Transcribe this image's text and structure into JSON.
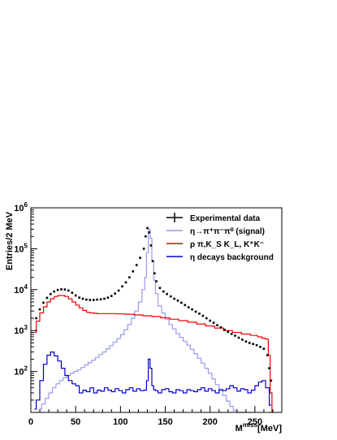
{
  "chart_data": {
    "type": "line",
    "title": "",
    "xlabel": "M^{miss} [MeV]",
    "xlabel_main": "M",
    "xlabel_sup": "miss",
    "xlabel_unit": "[MeV]",
    "ylabel": "Entries/2 MeV",
    "xlim": [
      0,
      280
    ],
    "ylim": [
      10,
      1000000
    ],
    "yscale": "log",
    "grid": false,
    "legend_position": "top-right",
    "x_ticks": [
      0,
      50,
      100,
      150,
      200,
      250
    ],
    "y_ticks": [
      {
        "base": "10",
        "exp": "2",
        "value": 100
      },
      {
        "base": "10",
        "exp": "3",
        "value": 1000
      },
      {
        "base": "10",
        "exp": "4",
        "value": 10000
      },
      {
        "base": "10",
        "exp": "5",
        "value": 100000
      },
      {
        "base": "10",
        "exp": "6",
        "value": 1000000
      }
    ],
    "series": [
      {
        "name": "Experimental data",
        "color": "#000000",
        "style": "points",
        "x": [
          6,
          10,
          14,
          18,
          22,
          26,
          30,
          34,
          38,
          42,
          46,
          50,
          54,
          58,
          62,
          66,
          70,
          74,
          78,
          82,
          86,
          90,
          94,
          98,
          102,
          106,
          110,
          114,
          118,
          122,
          126,
          128,
          130,
          132,
          134,
          136,
          138,
          140,
          144,
          148,
          152,
          156,
          160,
          164,
          168,
          172,
          176,
          180,
          184,
          188,
          192,
          196,
          200,
          204,
          208,
          212,
          216,
          220,
          224,
          228,
          232,
          236,
          240,
          244,
          248,
          252,
          256,
          260,
          264,
          266,
          268
        ],
        "y": [
          2000,
          3300,
          4800,
          6300,
          7800,
          9000,
          9800,
          10200,
          10100,
          9500,
          8400,
          7200,
          6400,
          6000,
          5700,
          5600,
          5600,
          5700,
          5800,
          6000,
          6400,
          7000,
          8000,
          9500,
          12000,
          15000,
          20000,
          28000,
          40000,
          60000,
          100000,
          200000,
          320000,
          250000,
          120000,
          50000,
          25000,
          16000,
          11000,
          9000,
          7800,
          6800,
          6000,
          5400,
          4800,
          4200,
          3700,
          3300,
          2900,
          2600,
          2300,
          2000,
          1750,
          1550,
          1350,
          1200,
          1050,
          930,
          830,
          750,
          670,
          600,
          540,
          500,
          470,
          440,
          400,
          360,
          250,
          120,
          60
        ]
      },
      {
        "name": "η→π⁺π⁻π⁰ (signal)",
        "color": "#9999ee",
        "style": "step",
        "x": [
          10,
          14,
          18,
          22,
          26,
          30,
          34,
          38,
          42,
          46,
          50,
          54,
          58,
          62,
          66,
          70,
          74,
          78,
          82,
          86,
          90,
          94,
          98,
          102,
          106,
          110,
          114,
          118,
          122,
          126,
          128,
          130,
          132,
          134,
          136,
          138,
          140,
          144,
          148,
          152,
          156,
          160,
          164,
          168,
          172,
          176,
          180,
          184,
          188,
          192,
          196,
          200,
          204,
          208,
          212,
          216,
          220,
          224,
          228,
          232,
          236,
          240,
          244
        ],
        "y": [
          12,
          16,
          22,
          30,
          40,
          50,
          60,
          70,
          80,
          90,
          100,
          110,
          125,
          145,
          165,
          190,
          220,
          260,
          300,
          360,
          430,
          520,
          640,
          800,
          1050,
          1400,
          2000,
          3000,
          5000,
          10000,
          20000,
          80000,
          300000,
          180000,
          50000,
          17000,
          8000,
          4000,
          2700,
          1900,
          1400,
          1100,
          850,
          680,
          550,
          440,
          350,
          270,
          210,
          160,
          120,
          90,
          66,
          48,
          35,
          26,
          19,
          14,
          11,
          10,
          10,
          10,
          10
        ]
      },
      {
        "name": "ρ π,K_S K_L, K⁺K⁻",
        "color": "#ee0000",
        "style": "step",
        "x": [
          4,
          8,
          12,
          16,
          20,
          24,
          28,
          32,
          36,
          40,
          44,
          48,
          52,
          56,
          60,
          64,
          68,
          72,
          76,
          80,
          90,
          100,
          110,
          120,
          130,
          140,
          150,
          160,
          170,
          180,
          190,
          200,
          210,
          220,
          230,
          240,
          250,
          256,
          260,
          264,
          266,
          268,
          270
        ],
        "y": [
          900,
          1700,
          2700,
          3800,
          5000,
          6000,
          6800,
          7200,
          7200,
          6800,
          6000,
          5000,
          4200,
          3600,
          3100,
          2800,
          2700,
          2650,
          2600,
          2600,
          2600,
          2550,
          2500,
          2400,
          2300,
          2200,
          2050,
          1900,
          1750,
          1600,
          1450,
          1300,
          1150,
          1000,
          900,
          820,
          760,
          700,
          650,
          620,
          250,
          30,
          10
        ]
      },
      {
        "name": "η decays background",
        "color": "#0000cc",
        "style": "step",
        "x": [
          4,
          8,
          12,
          16,
          20,
          24,
          28,
          32,
          36,
          40,
          44,
          48,
          52,
          56,
          60,
          64,
          68,
          72,
          76,
          80,
          84,
          88,
          92,
          96,
          100,
          104,
          108,
          112,
          116,
          120,
          124,
          128,
          130,
          132,
          134,
          136,
          138,
          140,
          144,
          148,
          152,
          156,
          160,
          164,
          168,
          172,
          176,
          180,
          184,
          188,
          192,
          196,
          200,
          204,
          208,
          212,
          216,
          220,
          224,
          228,
          232,
          236,
          240,
          244,
          248,
          252,
          256,
          260,
          264,
          268
        ],
        "y": [
          12,
          20,
          60,
          150,
          250,
          300,
          240,
          180,
          120,
          80,
          60,
          50,
          45,
          30,
          35,
          32,
          40,
          30,
          35,
          33,
          40,
          35,
          32,
          38,
          34,
          30,
          36,
          40,
          33,
          38,
          34,
          35,
          60,
          200,
          120,
          45,
          36,
          34,
          30,
          36,
          38,
          32,
          30,
          36,
          34,
          30,
          36,
          34,
          32,
          36,
          40,
          33,
          38,
          34,
          30,
          36,
          34,
          38,
          45,
          40,
          33,
          38,
          36,
          30,
          35,
          45,
          55,
          60,
          40,
          15
        ]
      }
    ]
  }
}
